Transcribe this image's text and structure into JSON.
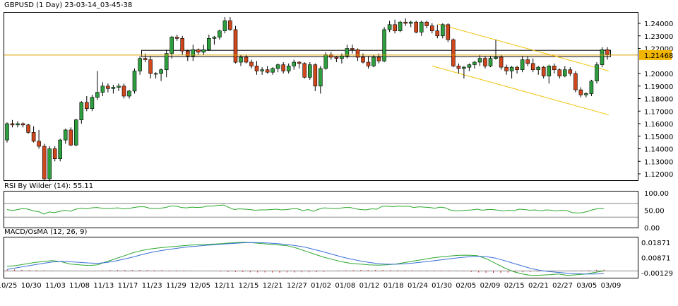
{
  "header": {
    "title": "GBPUSD (1 Day) 23-03-14_03-45-38",
    "rsi_label": "RSI By Wilder (14): 55.11",
    "macd_label": "MACD/OsMA (12, 26, 9)"
  },
  "colors": {
    "bull": "#2e9f3e",
    "bear": "#d0471c",
    "wick": "#000000",
    "price_line": "#e0a000",
    "channel": "#f2c200",
    "rsi_line": "#2ea82e",
    "macd_line": "#3a6fd8",
    "signal_line": "#2ea82e",
    "hist": "#d42020",
    "level_line": "#888888",
    "current_price_bg": "#f2b600"
  },
  "chart_data": [
    {
      "type": "candlestick",
      "title": "GBPUSD (1 Day)",
      "ylim": [
        1.11,
        1.25
      ],
      "y_ticks": [
        "1.24000",
        "1.23000",
        "1.22000",
        "1.20000",
        "1.19000",
        "1.18000",
        "1.17000",
        "1.16000",
        "1.15000",
        "1.14000",
        "1.13000",
        "1.12000"
      ],
      "current_price": "1.21468",
      "x_ticks": [
        "10/25",
        "10/30",
        "11/03",
        "11/08",
        "11/13",
        "11/17",
        "11/23",
        "11/29",
        "12/05",
        "12/11",
        "12/15",
        "12/21",
        "12/27",
        "01/02",
        "01/08",
        "01/12",
        "01/18",
        "01/24",
        "01/30",
        "02/05",
        "02/09",
        "02/15",
        "02/21",
        "02/27",
        "03/05",
        "03/09"
      ],
      "candles": [
        [
          1.147,
          1.161,
          1.145,
          1.16
        ],
        [
          1.16,
          1.163,
          1.157,
          1.159
        ],
        [
          1.159,
          1.162,
          1.157,
          1.16
        ],
        [
          1.16,
          1.161,
          1.157,
          1.159
        ],
        [
          1.159,
          1.16,
          1.152,
          1.153
        ],
        [
          1.153,
          1.158,
          1.145,
          1.146
        ],
        [
          1.146,
          1.155,
          1.14,
          1.142
        ],
        [
          1.142,
          1.144,
          1.115,
          1.116
        ],
        [
          1.116,
          1.142,
          1.114,
          1.14
        ],
        [
          1.14,
          1.142,
          1.13,
          1.132
        ],
        [
          1.132,
          1.148,
          1.13,
          1.147
        ],
        [
          1.147,
          1.156,
          1.144,
          1.155
        ],
        [
          1.155,
          1.157,
          1.142,
          1.143
        ],
        [
          1.143,
          1.164,
          1.142,
          1.163
        ],
        [
          1.163,
          1.178,
          1.16,
          1.177
        ],
        [
          1.177,
          1.182,
          1.17,
          1.172
        ],
        [
          1.172,
          1.183,
          1.17,
          1.181
        ],
        [
          1.181,
          1.202,
          1.179,
          1.185
        ],
        [
          1.185,
          1.193,
          1.182,
          1.19
        ],
        [
          1.19,
          1.192,
          1.185,
          1.188
        ],
        [
          1.188,
          1.191,
          1.184,
          1.189
        ],
        [
          1.189,
          1.192,
          1.186,
          1.19
        ],
        [
          1.19,
          1.192,
          1.18,
          1.182
        ],
        [
          1.182,
          1.187,
          1.18,
          1.186
        ],
        [
          1.186,
          1.204,
          1.184,
          1.202
        ],
        [
          1.202,
          1.214,
          1.199,
          1.212
        ],
        [
          1.212,
          1.216,
          1.209,
          1.211
        ],
        [
          1.211,
          1.214,
          1.196,
          1.2
        ],
        [
          1.2,
          1.201,
          1.196,
          1.2
        ],
        [
          1.2,
          1.204,
          1.194,
          1.203
        ],
        [
          1.203,
          1.219,
          1.197,
          1.216
        ],
        [
          1.216,
          1.23,
          1.212,
          1.229
        ],
        [
          1.229,
          1.231,
          1.226,
          1.228
        ],
        [
          1.228,
          1.23,
          1.215,
          1.218
        ],
        [
          1.218,
          1.219,
          1.21,
          1.214
        ],
        [
          1.214,
          1.223,
          1.21,
          1.219
        ],
        [
          1.219,
          1.22,
          1.215,
          1.217
        ],
        [
          1.217,
          1.223,
          1.215,
          1.219
        ],
        [
          1.219,
          1.231,
          1.218,
          1.228
        ],
        [
          1.228,
          1.23,
          1.223,
          1.229
        ],
        [
          1.229,
          1.235,
          1.227,
          1.234
        ],
        [
          1.234,
          1.245,
          1.232,
          1.242
        ],
        [
          1.242,
          1.245,
          1.234,
          1.235
        ],
        [
          1.235,
          1.238,
          1.208,
          1.209
        ],
        [
          1.209,
          1.215,
          1.206,
          1.213
        ],
        [
          1.213,
          1.215,
          1.208,
          1.209
        ],
        [
          1.209,
          1.211,
          1.204,
          1.206
        ],
        [
          1.206,
          1.21,
          1.199,
          1.202
        ],
        [
          1.202,
          1.205,
          1.199,
          1.203
        ],
        [
          1.203,
          1.206,
          1.2,
          1.201
        ],
        [
          1.201,
          1.205,
          1.199,
          1.204
        ],
        [
          1.204,
          1.208,
          1.201,
          1.207
        ],
        [
          1.207,
          1.209,
          1.2,
          1.202
        ],
        [
          1.202,
          1.208,
          1.2,
          1.206
        ],
        [
          1.206,
          1.211,
          1.203,
          1.209
        ],
        [
          1.209,
          1.21,
          1.204,
          1.208
        ],
        [
          1.208,
          1.209,
          1.196,
          1.197
        ],
        [
          1.197,
          1.209,
          1.195,
          1.207
        ],
        [
          1.207,
          1.208,
          1.186,
          1.19
        ],
        [
          1.19,
          1.206,
          1.184,
          1.204
        ],
        [
          1.204,
          1.217,
          1.203,
          1.215
        ],
        [
          1.215,
          1.217,
          1.211,
          1.213
        ],
        [
          1.213,
          1.214,
          1.209,
          1.212
        ],
        [
          1.212,
          1.216,
          1.208,
          1.214
        ],
        [
          1.214,
          1.223,
          1.212,
          1.22
        ],
        [
          1.22,
          1.223,
          1.216,
          1.219
        ],
        [
          1.219,
          1.22,
          1.21,
          1.213
        ],
        [
          1.213,
          1.216,
          1.208,
          1.209
        ],
        [
          1.209,
          1.214,
          1.204,
          1.206
        ],
        [
          1.206,
          1.215,
          1.205,
          1.213
        ],
        [
          1.213,
          1.216,
          1.208,
          1.21
        ],
        [
          1.21,
          1.237,
          1.209,
          1.235
        ],
        [
          1.235,
          1.242,
          1.233,
          1.239
        ],
        [
          1.239,
          1.243,
          1.232,
          1.234
        ],
        [
          1.234,
          1.242,
          1.233,
          1.241
        ],
        [
          1.241,
          1.244,
          1.238,
          1.24
        ],
        [
          1.24,
          1.242,
          1.237,
          1.241
        ],
        [
          1.241,
          1.242,
          1.232,
          1.233
        ],
        [
          1.233,
          1.242,
          1.23,
          1.241
        ],
        [
          1.241,
          1.242,
          1.236,
          1.238
        ],
        [
          1.238,
          1.24,
          1.232,
          1.234
        ],
        [
          1.234,
          1.239,
          1.228,
          1.23
        ],
        [
          1.23,
          1.24,
          1.228,
          1.239
        ],
        [
          1.239,
          1.24,
          1.225,
          1.227
        ],
        [
          1.227,
          1.228,
          1.205,
          1.206
        ],
        [
          1.206,
          1.208,
          1.2,
          1.204
        ],
        [
          1.204,
          1.206,
          1.196,
          1.205
        ],
        [
          1.205,
          1.208,
          1.202,
          1.207
        ],
        [
          1.207,
          1.21,
          1.204,
          1.209
        ],
        [
          1.209,
          1.215,
          1.206,
          1.212
        ],
        [
          1.212,
          1.214,
          1.204,
          1.206
        ],
        [
          1.206,
          1.214,
          1.205,
          1.212
        ],
        [
          1.212,
          1.227,
          1.211,
          1.213
        ],
        [
          1.213,
          1.215,
          1.203,
          1.205
        ],
        [
          1.205,
          1.207,
          1.199,
          1.202
        ],
        [
          1.202,
          1.206,
          1.196,
          1.205
        ],
        [
          1.205,
          1.206,
          1.2,
          1.203
        ],
        [
          1.203,
          1.214,
          1.201,
          1.211
        ],
        [
          1.211,
          1.214,
          1.206,
          1.208
        ],
        [
          1.208,
          1.212,
          1.201,
          1.203
        ],
        [
          1.203,
          1.206,
          1.199,
          1.205
        ],
        [
          1.205,
          1.206,
          1.196,
          1.198
        ],
        [
          1.198,
          1.207,
          1.192,
          1.206
        ],
        [
          1.206,
          1.208,
          1.2,
          1.203
        ],
        [
          1.203,
          1.204,
          1.196,
          1.198
        ],
        [
          1.198,
          1.206,
          1.197,
          1.203
        ],
        [
          1.203,
          1.205,
          1.198,
          1.2
        ],
        [
          1.2,
          1.202,
          1.185,
          1.187
        ],
        [
          1.187,
          1.189,
          1.181,
          1.183
        ],
        [
          1.183,
          1.185,
          1.181,
          1.184
        ],
        [
          1.184,
          1.195,
          1.182,
          1.194
        ],
        [
          1.194,
          1.209,
          1.192,
          1.207
        ],
        [
          1.207,
          1.221,
          1.205,
          1.219
        ],
        [
          1.219,
          1.221,
          1.211,
          1.215
        ]
      ]
    },
    {
      "type": "line",
      "title": "RSI By Wilder (14)",
      "last_value": "55.11",
      "y_ticks": [
        "100.00",
        "50.00",
        "0.00"
      ],
      "ylim": [
        0,
        100
      ],
      "levels": [
        70,
        30
      ],
      "values": [
        52,
        49,
        52,
        55,
        53,
        48,
        46,
        39,
        45,
        43,
        47,
        50,
        47,
        53,
        56,
        54,
        57,
        58,
        56,
        55,
        56,
        57,
        54,
        55,
        58,
        60,
        60,
        56,
        55,
        56,
        58,
        62,
        62,
        58,
        57,
        59,
        58,
        59,
        62,
        62,
        64,
        65,
        58,
        52,
        54,
        53,
        52,
        50,
        51,
        51,
        52,
        53,
        51,
        52,
        54,
        54,
        49,
        52,
        47,
        53,
        57,
        56,
        55,
        56,
        58,
        58,
        54,
        52,
        51,
        54,
        53,
        61,
        62,
        60,
        62,
        61,
        62,
        58,
        60,
        59,
        58,
        56,
        59,
        57,
        50,
        48,
        49,
        50,
        51,
        53,
        50,
        52,
        52,
        50,
        48,
        50,
        49,
        53,
        52,
        50,
        51,
        48,
        51,
        50,
        48,
        50,
        49,
        43,
        42,
        43,
        47,
        52,
        55,
        55
      ]
    },
    {
      "type": "line",
      "title": "MACD/OsMA (12, 26, 9)",
      "y_ticks": [
        "0.01871",
        "0.00871",
        "-0.00129"
      ],
      "ylim": [
        -0.004,
        0.021
      ],
      "series": [
        {
          "values": [
            0.003,
            0.0035,
            0.0045,
            0.0055,
            0.0062,
            0.0068,
            0.006,
            0.0045,
            0.004,
            0.0035,
            0.004,
            0.006,
            0.008,
            0.01,
            0.012,
            0.0135,
            0.0145,
            0.0152,
            0.0158,
            0.0163,
            0.0168,
            0.0172,
            0.0174,
            0.0176,
            0.018,
            0.0185,
            0.0188,
            0.0185,
            0.018,
            0.0175,
            0.017,
            0.0165,
            0.015,
            0.013,
            0.011,
            0.009,
            0.0075,
            0.006,
            0.005,
            0.0045,
            0.004,
            0.0038,
            0.004,
            0.0045,
            0.0055,
            0.0065,
            0.0075,
            0.0085,
            0.0092,
            0.0098,
            0.0102,
            0.0103,
            0.01,
            0.008,
            0.005,
            0.002,
            -0.0005,
            -0.002,
            -0.003,
            -0.0028,
            -0.0025,
            -0.002,
            -0.003,
            -0.0025,
            -0.002,
            -0.001,
            0.0
          ]
        },
        {
          "values": [
            0.001,
            0.002,
            0.003,
            0.004,
            0.005,
            0.0058,
            0.0062,
            0.006,
            0.0056,
            0.0052,
            0.005,
            0.0055,
            0.0065,
            0.0078,
            0.0092,
            0.0108,
            0.0122,
            0.0133,
            0.0142,
            0.015,
            0.0157,
            0.0163,
            0.0168,
            0.0172,
            0.0176,
            0.018,
            0.0184,
            0.0186,
            0.0185,
            0.0182,
            0.0178,
            0.0173,
            0.0165,
            0.0155,
            0.014,
            0.0125,
            0.0108,
            0.0092,
            0.0078,
            0.0066,
            0.0056,
            0.0048,
            0.0044,
            0.0044,
            0.0047,
            0.0052,
            0.0058,
            0.0065,
            0.0072,
            0.008,
            0.0087,
            0.0092,
            0.0096,
            0.0094,
            0.0084,
            0.0068,
            0.005,
            0.0032,
            0.0015,
            0.0003,
            -0.0005,
            -0.001,
            -0.0015,
            -0.0018,
            -0.002,
            -0.002,
            -0.0018
          ]
        }
      ],
      "histogram": [
        0.0008,
        0.0009,
        0.0007,
        0.0006,
        0.0005,
        0.0004,
        0.0003,
        0.0002,
        0.0001,
        0.0,
        0.0001,
        0.0001,
        0.0002,
        0.0003,
        0.0005,
        0.0006,
        0.0006,
        0.0006,
        0.0006,
        0.0006,
        0.0005,
        0.0005,
        0.0004,
        0.0004,
        0.0003,
        0.0002,
        0.0,
        0.0,
        -0.0003,
        -0.0004,
        -0.0006,
        -0.0007,
        -0.0008,
        -0.0009,
        -0.001,
        -0.001,
        -0.0011,
        -0.0011,
        -0.001,
        -0.001,
        -0.0009,
        -0.0009,
        -0.0008,
        -0.0006,
        0.0,
        0.0003,
        0.0004,
        0.0005,
        0.0006,
        0.0006,
        0.0006,
        0.0006,
        0.0006,
        0.0005,
        0.0005,
        0.0005,
        0.0004,
        0.0004,
        0.0004,
        0.0004,
        0.0003,
        0.0001,
        -0.0003,
        -0.0007,
        -0.001,
        -0.0012,
        -0.0012,
        -0.0012,
        -0.0011,
        -0.001,
        -0.0009,
        -0.0007,
        -0.0005,
        -0.0003,
        -0.0002,
        0.0,
        0.0001,
        0.0002,
        0.0003,
        0.0005,
        0.0007,
        0.0008
      ]
    }
  ]
}
